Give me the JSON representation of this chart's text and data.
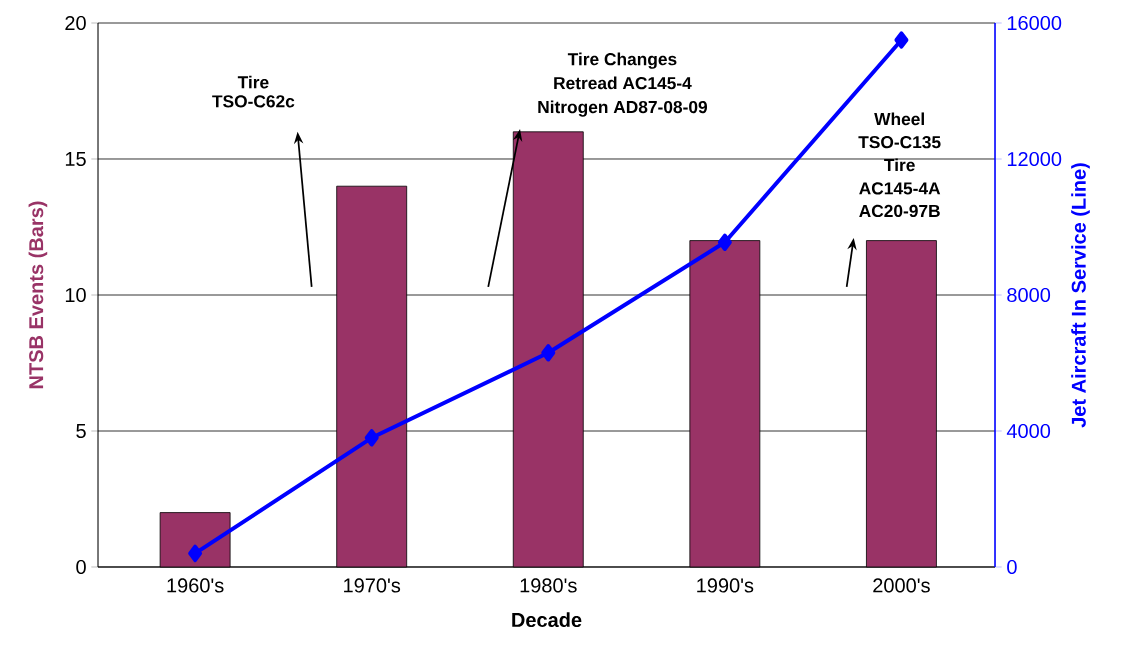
{
  "chart_data": {
    "type": "bar",
    "categories": [
      "1960's",
      "1970's",
      "1980's",
      "1990's",
      "2000's"
    ],
    "series": [
      {
        "color": "#993366",
        "values": [
          2,
          14,
          16,
          12,
          12
        ]
      },
      {
        "type": "line",
        "axis": "y2",
        "color": "#0000ff",
        "marker": "diamond",
        "line_style": "solid",
        "values": [
          400,
          3800,
          6300,
          9550,
          15500
        ]
      }
    ],
    "xlabel": "Decade",
    "ylabel": "NTSB Events (Bars)",
    "y2label": "Jet Aircraft In Service (Line)",
    "ylim": [
      0,
      20
    ],
    "yticks": [
      0,
      5,
      10,
      15,
      20
    ],
    "y2lim": [
      0,
      16000
    ],
    "y2ticks": [
      0,
      4000,
      8000,
      12000,
      16000
    ],
    "grid": "y",
    "annotations": [
      "Tire",
      "TSO-C62c",
      "Tire Changes",
      "Retread AC145-4",
      "Nitrogen AD87-08-09",
      "Wheel",
      "TSO-C135",
      "Tire",
      "AC145-4A",
      "AC20-97B"
    ]
  }
}
